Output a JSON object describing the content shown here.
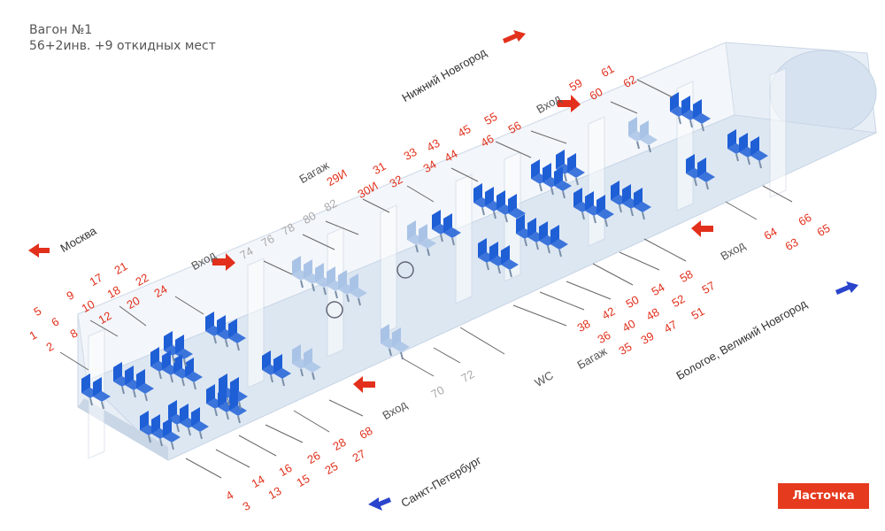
{
  "header": {
    "title": "Вагон №1",
    "subtitle": "56+2инв. +9 откидных мест"
  },
  "brand": "Ласточка",
  "colors": {
    "seat": "#1f5fd6",
    "seat_folding": "#a9c3e6",
    "arrow_red": "#e2301c",
    "arrow_blue": "#2a44cc",
    "car_body": "#dde7f2"
  },
  "directions": {
    "moscow": "Москва",
    "nizhny": "Нижний Новгород",
    "spb": "Санкт-Петербург",
    "bologoe": "Бологое, Великий Новгород"
  },
  "zones": {
    "entrance_1": "Вход",
    "entrance_2": "Вход",
    "entrance_3": "Вход",
    "entrance_4": "Вход",
    "luggage_1": "Багаж",
    "luggage_2": "Багаж",
    "wc": "WC"
  },
  "seat_labels": {
    "red": [
      "1",
      "2",
      "3",
      "4",
      "5",
      "6",
      "8",
      "9",
      "10",
      "12",
      "13",
      "14",
      "15",
      "16",
      "17",
      "18",
      "20",
      "21",
      "22",
      "24",
      "25",
      "26",
      "27",
      "28",
      "29И",
      "30И",
      "31",
      "32",
      "33",
      "34",
      "35",
      "36",
      "38",
      "39",
      "40",
      "42",
      "43",
      "44",
      "45",
      "46",
      "47",
      "48",
      "50",
      "51",
      "52",
      "54",
      "55",
      "56",
      "57",
      "58",
      "59",
      "60",
      "61",
      "62",
      "63",
      "64",
      "65",
      "66",
      "68"
    ],
    "gray": [
      "70",
      "72",
      "74",
      "76",
      "78",
      "80",
      "82"
    ]
  }
}
